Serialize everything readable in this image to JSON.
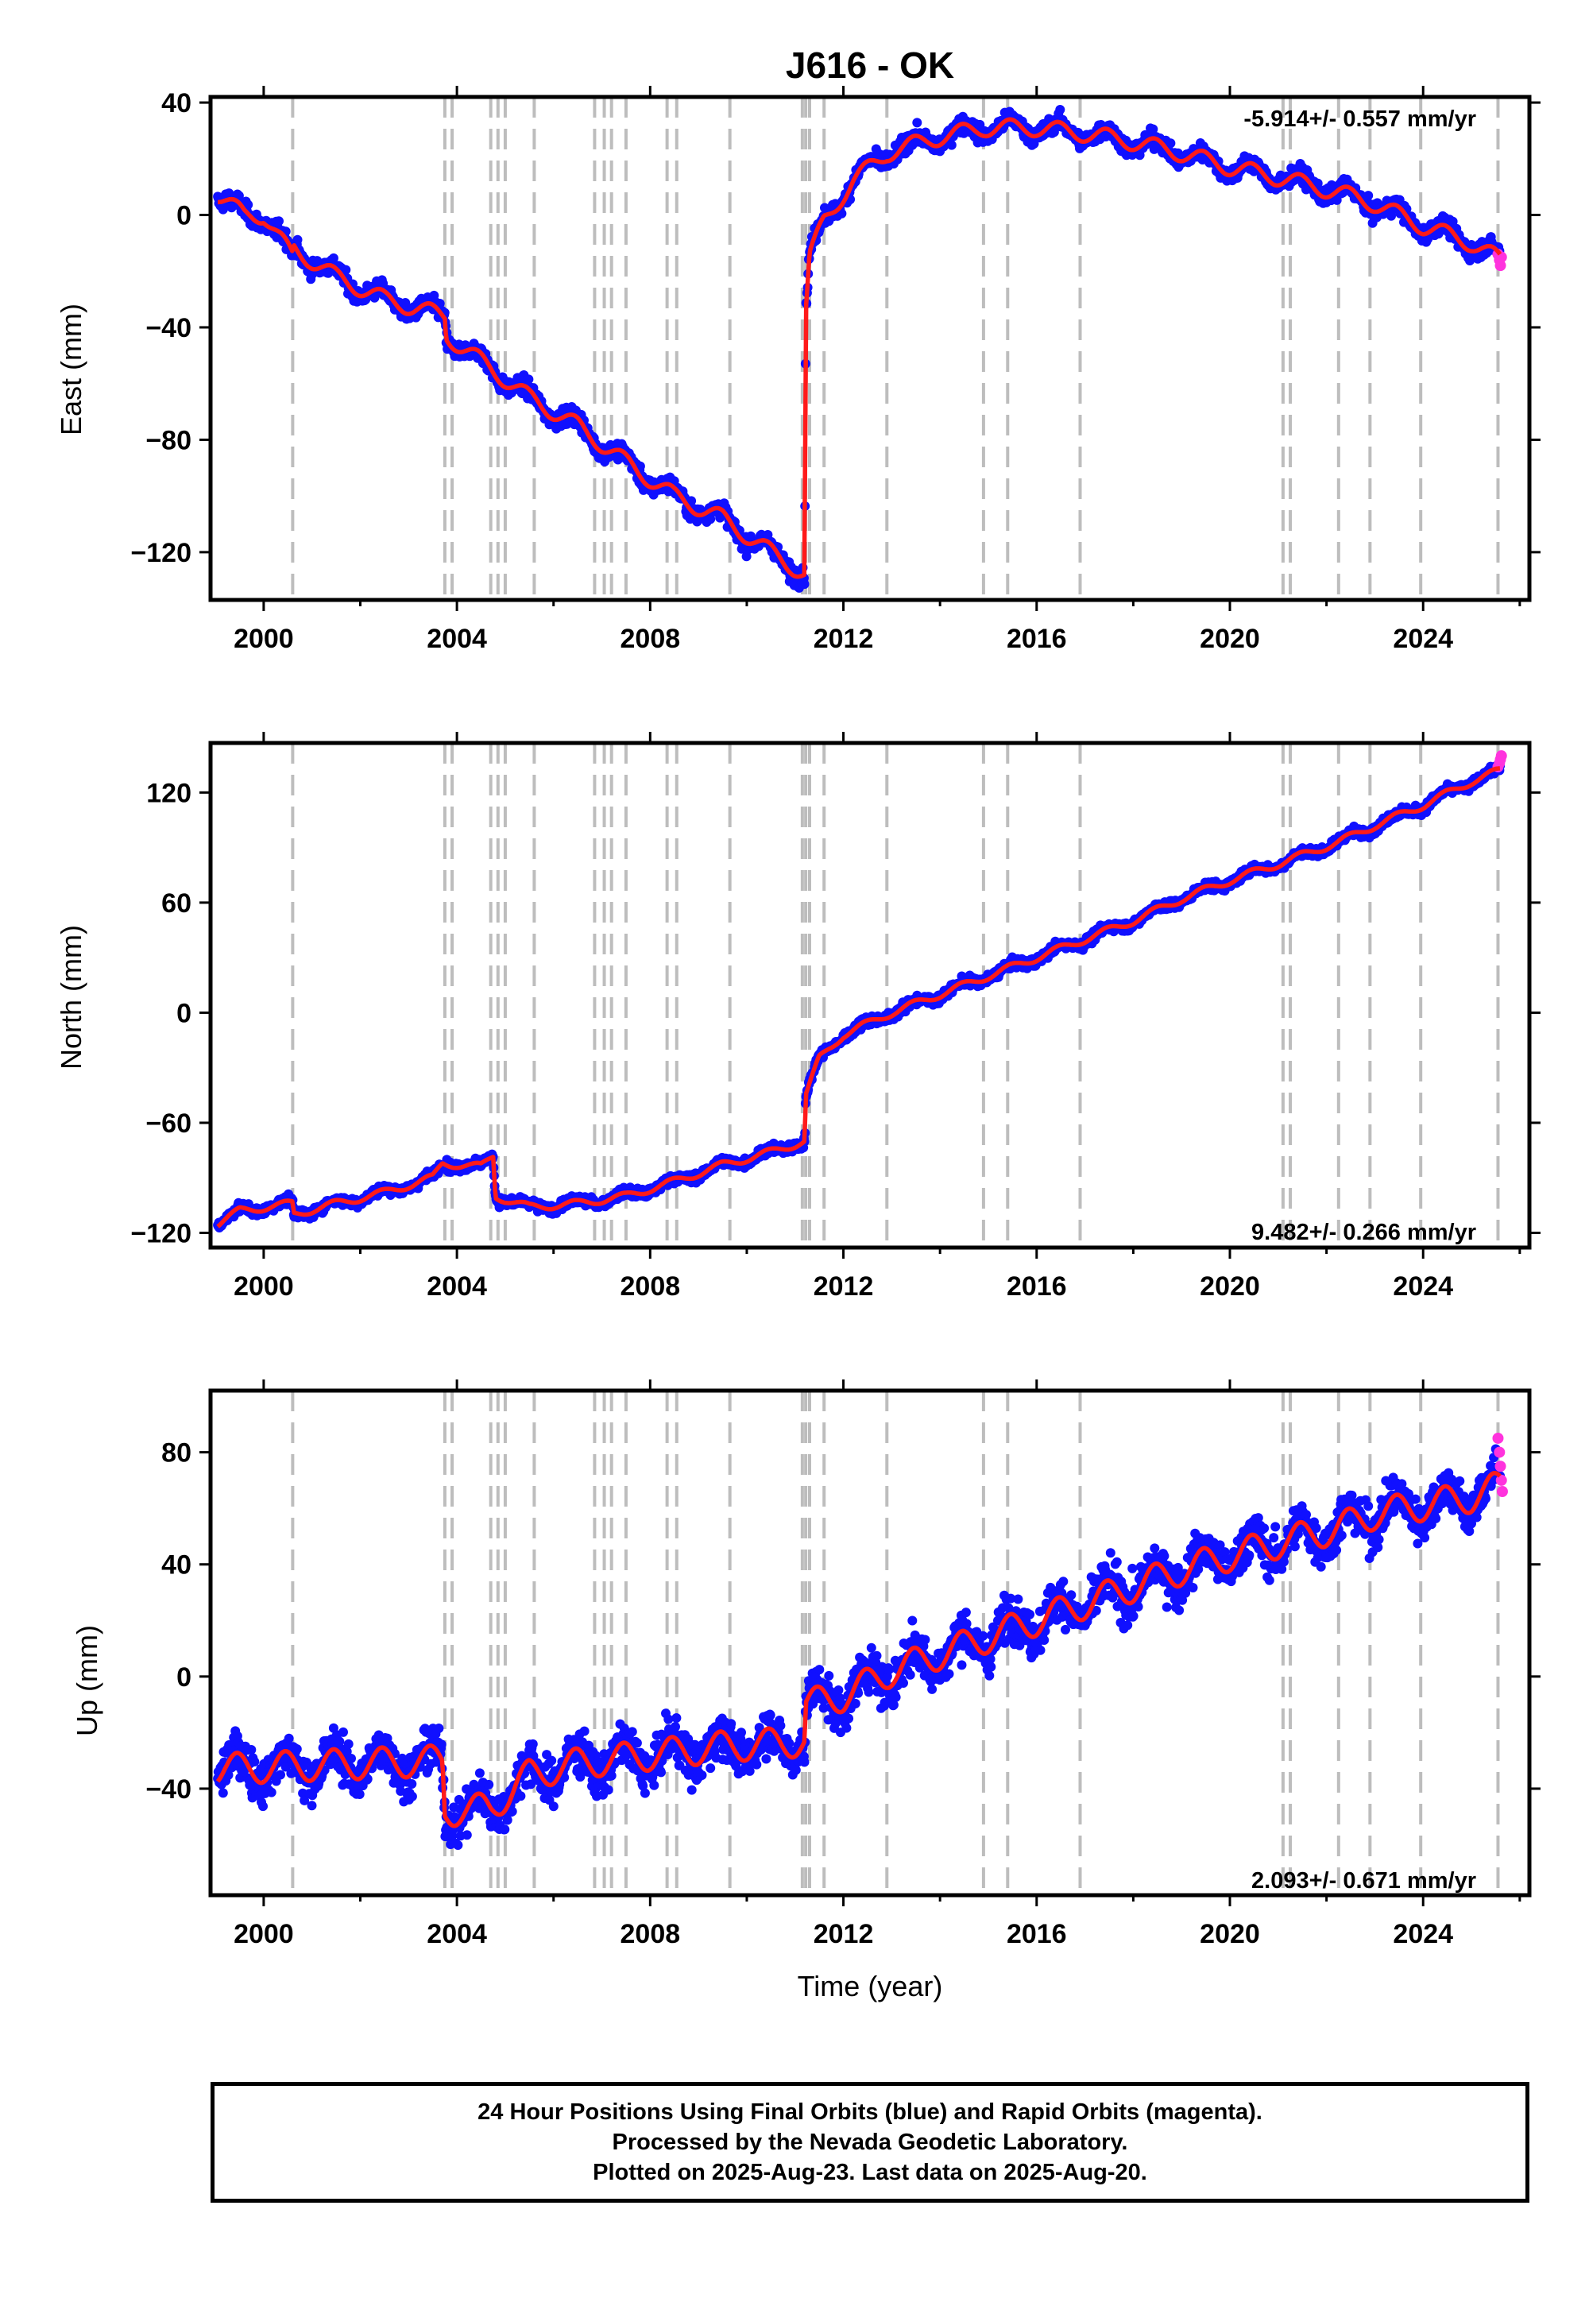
{
  "figure": {
    "title": "J616 - OK",
    "xlabel": "Time (year)",
    "colors": {
      "final_orbits": "#1010ff",
      "rapid_orbits": "#ff33dd",
      "model": "#ff1a1a",
      "event_lines": "#bdbdbd"
    }
  },
  "footer": {
    "line1": "24 Hour Positions Using Final Orbits (blue) and Rapid Orbits (magenta).",
    "line2": "Processed by the Nevada Geodetic Laboratory.",
    "line3": "Plotted on 2025-Aug-23. Last data on 2025-Aug-20."
  },
  "chart_data": [
    {
      "type": "scatter",
      "ylabel": "East (mm)",
      "rate": "-5.914+/- 0.557 mm/yr",
      "rate_position": "top-right",
      "xlim": [
        1998.9,
        2026.2
      ],
      "ylim": [
        -137,
        42
      ],
      "xticks": [
        2000,
        2004,
        2008,
        2012,
        2016,
        2020,
        2024
      ],
      "yticks": [
        40,
        0,
        -40,
        -80,
        -120
      ],
      "event_lines": [
        2000.6,
        2003.75,
        2003.9,
        2004.7,
        2004.85,
        2005.0,
        2005.6,
        2006.85,
        2007.05,
        2007.2,
        2007.5,
        2008.35,
        2008.55,
        2009.65,
        2011.15,
        2011.22,
        2011.3,
        2011.6,
        2012.9,
        2014.9,
        2015.4,
        2016.9,
        2021.1,
        2021.25,
        2022.25,
        2022.9,
        2023.95,
        2025.55
      ],
      "model_knots": [
        [
          1999.05,
          7
        ],
        [
          1999.6,
          0
        ],
        [
          2000.0,
          0
        ],
        [
          2000.6,
          -15
        ],
        [
          2000.62,
          -12
        ],
        [
          2001.5,
          -22
        ],
        [
          2002.5,
          -30
        ],
        [
          2003.75,
          -36
        ],
        [
          2003.78,
          -43
        ],
        [
          2004.5,
          -52
        ],
        [
          2005.5,
          -65
        ],
        [
          2006.5,
          -75
        ],
        [
          2007.5,
          -88
        ],
        [
          2008.5,
          -100
        ],
        [
          2009.5,
          -108
        ],
        [
          2010.5,
          -120
        ],
        [
          2011.2,
          -128
        ],
        [
          2011.22,
          -35
        ],
        [
          2011.3,
          -15
        ],
        [
          2011.6,
          -2
        ],
        [
          2012.2,
          12
        ],
        [
          2012.9,
          22
        ],
        [
          2013.8,
          27
        ],
        [
          2014.9,
          31
        ],
        [
          2016.0,
          31
        ],
        [
          2017.0,
          29
        ],
        [
          2018.0,
          26
        ],
        [
          2019.0,
          22
        ],
        [
          2020.0,
          17
        ],
        [
          2021.1,
          13
        ],
        [
          2022.25,
          8
        ],
        [
          2023.0,
          4
        ],
        [
          2024.0,
          -4
        ],
        [
          2025.0,
          -10
        ],
        [
          2025.6,
          -16
        ]
      ],
      "seasonal_amplitude": 3,
      "scatter_noise": 3.5,
      "rapid_points": [
        [
          2025.55,
          -14
        ],
        [
          2025.58,
          -16
        ],
        [
          2025.6,
          -18
        ],
        [
          2025.62,
          -15
        ]
      ]
    },
    {
      "type": "scatter",
      "ylabel": "North (mm)",
      "rate": "9.482+/- 0.266 mm/yr",
      "rate_position": "bottom-right",
      "xlim": [
        1998.9,
        2026.2
      ],
      "ylim": [
        -128,
        147
      ],
      "xticks": [
        2000,
        2004,
        2008,
        2012,
        2016,
        2020,
        2024
      ],
      "yticks": [
        120,
        60,
        0,
        -60,
        -120
      ],
      "event_lines": [
        2000.6,
        2003.75,
        2003.9,
        2004.7,
        2004.85,
        2005.0,
        2005.6,
        2006.85,
        2007.05,
        2007.2,
        2007.5,
        2008.35,
        2008.55,
        2009.65,
        2011.15,
        2011.22,
        2011.3,
        2011.6,
        2012.9,
        2014.9,
        2015.4,
        2016.9,
        2021.1,
        2021.25,
        2022.25,
        2022.9,
        2023.95,
        2025.55
      ],
      "model_knots": [
        [
          1999.05,
          -115
        ],
        [
          1999.5,
          -108
        ],
        [
          2000.6,
          -104
        ],
        [
          2000.62,
          -110
        ],
        [
          2001.5,
          -104
        ],
        [
          2002.5,
          -98
        ],
        [
          2003.5,
          -90
        ],
        [
          2003.7,
          -82
        ],
        [
          2004.5,
          -84
        ],
        [
          2004.75,
          -78
        ],
        [
          2004.8,
          -100
        ],
        [
          2005.5,
          -106
        ],
        [
          2006.5,
          -104
        ],
        [
          2007.5,
          -100
        ],
        [
          2008.5,
          -92
        ],
        [
          2009.5,
          -83
        ],
        [
          2010.5,
          -76
        ],
        [
          2011.2,
          -70
        ],
        [
          2011.22,
          -45
        ],
        [
          2011.5,
          -25
        ],
        [
          2012.0,
          -12
        ],
        [
          2013.0,
          0
        ],
        [
          2014.0,
          10
        ],
        [
          2015.0,
          20
        ],
        [
          2016.0,
          30
        ],
        [
          2017.0,
          40
        ],
        [
          2018.0,
          50
        ],
        [
          2019.0,
          62
        ],
        [
          2020.0,
          72
        ],
        [
          2021.1,
          82
        ],
        [
          2022.25,
          93
        ],
        [
          2023.0,
          102
        ],
        [
          2024.0,
          113
        ],
        [
          2025.0,
          126
        ],
        [
          2025.6,
          132
        ]
      ],
      "seasonal_amplitude": 2,
      "scatter_noise": 3,
      "rapid_points": [
        [
          2025.55,
          134
        ],
        [
          2025.58,
          136
        ],
        [
          2025.6,
          138
        ],
        [
          2025.62,
          140
        ]
      ]
    },
    {
      "type": "scatter",
      "ylabel": "Up (mm)",
      "rate": "2.093+/- 0.671 mm/yr",
      "rate_position": "bottom-right",
      "xlim": [
        1998.9,
        2026.2
      ],
      "ylim": [
        -78,
        102
      ],
      "xticks": [
        2000,
        2004,
        2008,
        2012,
        2016,
        2020,
        2024
      ],
      "yticks": [
        80,
        40,
        0,
        -40
      ],
      "event_lines": [
        2000.6,
        2003.75,
        2003.9,
        2004.7,
        2004.85,
        2005.0,
        2005.6,
        2006.85,
        2007.05,
        2007.2,
        2007.5,
        2008.35,
        2008.55,
        2009.65,
        2011.15,
        2011.22,
        2011.3,
        2011.6,
        2012.9,
        2014.9,
        2015.4,
        2016.9,
        2021.1,
        2021.25,
        2022.25,
        2022.9,
        2023.95,
        2025.55
      ],
      "model_knots": [
        [
          1999.05,
          -33
        ],
        [
          2003.7,
          -30
        ],
        [
          2003.75,
          -48
        ],
        [
          2004.7,
          -47
        ],
        [
          2005.5,
          -35
        ],
        [
          2006.5,
          -31
        ],
        [
          2007.5,
          -29
        ],
        [
          2008.5,
          -27
        ],
        [
          2009.5,
          -25
        ],
        [
          2010.5,
          -24
        ],
        [
          2011.2,
          -23
        ],
        [
          2011.22,
          -10
        ],
        [
          2012.0,
          -7
        ],
        [
          2013.0,
          2
        ],
        [
          2014.0,
          8
        ],
        [
          2015.0,
          14
        ],
        [
          2016.0,
          20
        ],
        [
          2017.0,
          26
        ],
        [
          2018.0,
          32
        ],
        [
          2019.0,
          38
        ],
        [
          2020.0,
          43
        ],
        [
          2021.1,
          48
        ],
        [
          2022.25,
          53
        ],
        [
          2023.0,
          58
        ],
        [
          2024.0,
          61
        ],
        [
          2025.0,
          64
        ],
        [
          2025.6,
          68
        ]
      ],
      "seasonal_amplitude": 5.5,
      "scatter_noise": 9,
      "rapid_points": [
        [
          2025.55,
          85
        ],
        [
          2025.58,
          80
        ],
        [
          2025.6,
          75
        ],
        [
          2025.62,
          70
        ],
        [
          2025.64,
          66
        ]
      ]
    }
  ]
}
